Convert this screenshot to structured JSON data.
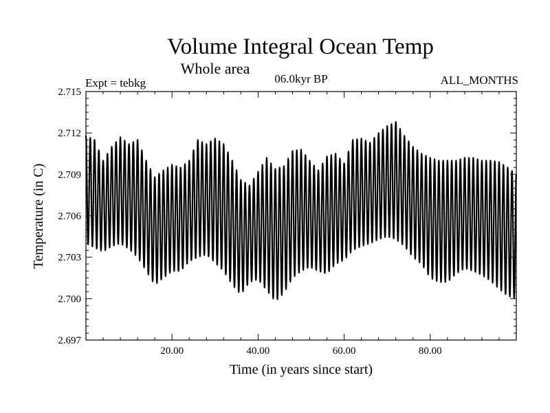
{
  "chart_data": {
    "type": "line",
    "title": "Volume Integral Ocean Temp",
    "subtitle": "Whole area",
    "experiment_label": "Expt = tebkg",
    "period_label": "06.0kyr BP",
    "months_label": "ALL_MONTHS",
    "xlabel": "Time (in years since start)",
    "ylabel": "Temperature (in C)",
    "xlim": [
      0,
      100
    ],
    "ylim": [
      2.697,
      2.715
    ],
    "x_ticks": [
      20,
      40,
      60,
      80
    ],
    "x_tick_labels": [
      "20.00",
      "40.00",
      "60.00",
      "80.00"
    ],
    "y_ticks": [
      2.697,
      2.7,
      2.703,
      2.706,
      2.709,
      2.712,
      2.715
    ],
    "y_tick_labels": [
      "2.697",
      "2.700",
      "2.703",
      "2.706",
      "2.709",
      "2.712",
      "2.715"
    ],
    "series": [
      {
        "name": "Volume Integral Ocean Temp",
        "cycle_period_years": 1,
        "annual_cycle": {
          "years": [
            0,
            2,
            4,
            6,
            8,
            10,
            12,
            14,
            16,
            18,
            20,
            22,
            24,
            26,
            28,
            30,
            32,
            34,
            36,
            38,
            40,
            42,
            44,
            46,
            48,
            50,
            52,
            54,
            56,
            58,
            60,
            62,
            64,
            66,
            68,
            70,
            72,
            74,
            76,
            78,
            80,
            82,
            84,
            86,
            88,
            90,
            92,
            94,
            96,
            98,
            100
          ],
          "max": [
            2.7118,
            2.7115,
            2.71,
            2.711,
            2.7117,
            2.7112,
            2.7115,
            2.71,
            2.7088,
            2.7093,
            2.7097,
            2.7095,
            2.71,
            2.7115,
            2.7112,
            2.7116,
            2.7112,
            2.71,
            2.7086,
            2.7082,
            2.7092,
            2.7102,
            2.7094,
            2.7096,
            2.7107,
            2.7108,
            2.71,
            2.7093,
            2.7103,
            2.7105,
            2.7098,
            2.7115,
            2.7116,
            2.7113,
            2.712,
            2.7125,
            2.7128,
            2.7118,
            2.711,
            2.7105,
            2.7102,
            2.71,
            2.71,
            2.71,
            2.7102,
            2.7102,
            2.71,
            2.71,
            2.7099,
            2.7095,
            2.709
          ],
          "min": [
            2.704,
            2.7037,
            2.7034,
            2.7038,
            2.704,
            2.7036,
            2.703,
            2.702,
            2.701,
            2.7015,
            2.702,
            2.702,
            2.7027,
            2.703,
            2.7032,
            2.7026,
            2.702,
            2.701,
            2.7003,
            2.7012,
            2.7014,
            2.7006,
            2.6998,
            2.7004,
            2.7015,
            2.702,
            2.7023,
            2.702,
            2.7018,
            2.7025,
            2.7028,
            2.7035,
            2.7038,
            2.704,
            2.7043,
            2.7045,
            2.7043,
            2.7038,
            2.703,
            2.7025,
            2.7015,
            2.7012,
            2.7012,
            2.7018,
            2.7022,
            2.702,
            2.7017,
            2.7013,
            2.7007,
            2.7002,
            2.7
          ]
        }
      }
    ]
  }
}
